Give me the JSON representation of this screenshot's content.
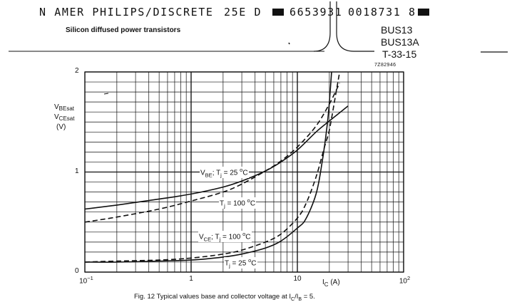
{
  "header": {
    "left_text": "N AMER PHILIPS/DISCRETE",
    "code": "25E D",
    "number1": "6653931",
    "number2": "0018731 8"
  },
  "subtitle": "Silicon diffused power transistors",
  "parts": {
    "line1": "BUS13",
    "line2": "BUS13A",
    "line3": "T-33-15"
  },
  "figure_ref": "7Z82946",
  "chart_data": {
    "type": "line",
    "x_scale": "log",
    "xlim": [
      0.1,
      100
    ],
    "ylim": [
      0,
      2
    ],
    "grid": true,
    "y_label": {
      "l1": "V",
      "l1sub": "BEsat",
      "l2": "V",
      "l2sub": "CEsat",
      "unit": "(V)"
    },
    "x_label": {
      "main": "I",
      "sub": "C",
      "unit": " (A)"
    },
    "y_ticks": [
      {
        "value": 0,
        "label": "0"
      },
      {
        "value": 1,
        "label": "1"
      },
      {
        "value": 2,
        "label": "2"
      }
    ],
    "x_ticks": [
      {
        "value": 0.1,
        "label": "10",
        "sup": "−1"
      },
      {
        "value": 1,
        "label": "1",
        "sup": ""
      },
      {
        "value": 10,
        "label": "10",
        "sup": ""
      },
      {
        "value": 100,
        "label": "10",
        "sup": "2"
      }
    ],
    "series": [
      {
        "name": "VBE Tj=25",
        "style": "solid",
        "x": [
          0.1,
          0.2,
          0.5,
          1,
          2,
          3,
          5,
          7,
          10,
          15,
          20,
          30
        ],
        "y": [
          0.63,
          0.67,
          0.73,
          0.78,
          0.85,
          0.91,
          1.01,
          1.1,
          1.22,
          1.4,
          1.51,
          1.66
        ]
      },
      {
        "name": "VBE Tj=100",
        "style": "dashed",
        "x": [
          0.1,
          0.2,
          0.5,
          1,
          2,
          3,
          5,
          7,
          10,
          15,
          20,
          25
        ],
        "y": [
          0.5,
          0.55,
          0.63,
          0.71,
          0.8,
          0.88,
          1.01,
          1.11,
          1.25,
          1.46,
          1.68,
          1.89
        ]
      },
      {
        "name": "VCE Tj=100",
        "style": "dashed",
        "x": [
          0.1,
          0.2,
          0.5,
          1,
          2,
          3,
          5,
          7,
          10,
          12,
          15,
          18,
          20,
          23,
          25
        ],
        "y": [
          0.1,
          0.11,
          0.12,
          0.14,
          0.18,
          0.22,
          0.3,
          0.38,
          0.54,
          0.68,
          0.95,
          1.25,
          1.42,
          1.78,
          2.0
        ]
      },
      {
        "name": "VCE Tj=25",
        "style": "solid",
        "x": [
          0.1,
          0.2,
          0.5,
          1,
          2,
          3,
          5,
          7,
          10,
          12,
          15,
          17,
          19,
          20,
          21
        ],
        "y": [
          0.1,
          0.1,
          0.11,
          0.12,
          0.15,
          0.18,
          0.24,
          0.31,
          0.44,
          0.53,
          0.78,
          1.08,
          1.45,
          1.7,
          2.0
        ]
      }
    ],
    "curve_labels": [
      {
        "prefix": "V",
        "sub": "BE",
        "text": "; T",
        "sub2": "j",
        "temp": " = 25 ",
        "sup": "o",
        "unit": "C"
      },
      {
        "prefix": "",
        "sub": "",
        "text": "T",
        "sub2": "j",
        "temp": " = 100 ",
        "sup": "o",
        "unit": "C"
      },
      {
        "prefix": "V",
        "sub": "CE",
        "text": "; T",
        "sub2": "j",
        "temp": " = 100 ",
        "sup": "o",
        "unit": "C"
      },
      {
        "prefix": "",
        "sub": "",
        "text": "T",
        "sub2": "j",
        "temp": " = 25 ",
        "sup": "o",
        "unit": "C"
      }
    ]
  },
  "caption": {
    "pre": "Fig. 12  Typical values base and collector voltage at I",
    "sub1": "C",
    "mid": "/I",
    "sub2": "B",
    "post": " = 5."
  }
}
